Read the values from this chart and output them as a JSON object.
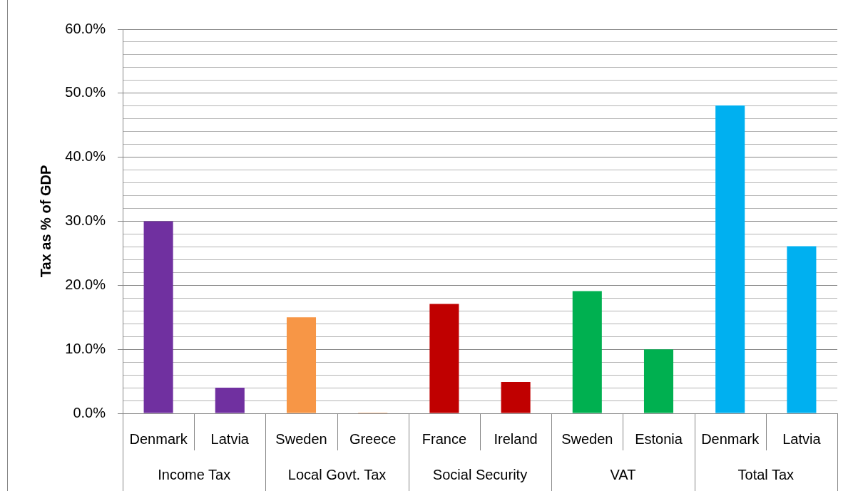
{
  "chart_data": {
    "type": "bar",
    "ylabel": "Tax as % of GDP",
    "categories": [
      "Denmark",
      "Latvia",
      "Sweden",
      "Greece",
      "France",
      "Ireland",
      "Sweden",
      "Estonia",
      "Denmark",
      "Latvia"
    ],
    "values": [
      30.0,
      4.0,
      15.0,
      0.1,
      17.1,
      4.9,
      19.1,
      10.0,
      48.1,
      26.1
    ],
    "colors": [
      "#7030a0",
      "#7030a0",
      "#f79646",
      "#f79646",
      "#c00000",
      "#c00000",
      "#00b050",
      "#00b050",
      "#00b0f0",
      "#00b0f0"
    ],
    "ylim": [
      0,
      60
    ],
    "yticks": [
      {
        "value": 0,
        "label": "0.0%"
      },
      {
        "value": 2,
        "label": null
      },
      {
        "value": 4,
        "label": null
      },
      {
        "value": 6,
        "label": null
      },
      {
        "value": 8,
        "label": null
      },
      {
        "value": 10,
        "label": "10.0%"
      },
      {
        "value": 12,
        "label": null
      },
      {
        "value": 14,
        "label": null
      },
      {
        "value": 16,
        "label": null
      },
      {
        "value": 18,
        "label": null
      },
      {
        "value": 20,
        "label": "20.0%"
      },
      {
        "value": 22,
        "label": null
      },
      {
        "value": 24,
        "label": null
      },
      {
        "value": 26,
        "label": null
      },
      {
        "value": 28,
        "label": null
      },
      {
        "value": 30,
        "label": "30.0%"
      },
      {
        "value": 32,
        "label": null
      },
      {
        "value": 34,
        "label": null
      },
      {
        "value": 36,
        "label": null
      },
      {
        "value": 38,
        "label": null
      },
      {
        "value": 40,
        "label": "40.0%"
      },
      {
        "value": 42,
        "label": null
      },
      {
        "value": 44,
        "label": null
      },
      {
        "value": 46,
        "label": null
      },
      {
        "value": 48,
        "label": null
      },
      {
        "value": 50,
        "label": "50.0%"
      },
      {
        "value": 52,
        "label": null
      },
      {
        "value": 54,
        "label": null
      },
      {
        "value": 56,
        "label": null
      },
      {
        "value": 58,
        "label": null
      },
      {
        "value": 60,
        "label": "60.0%"
      }
    ],
    "grid": "y",
    "annotations": [
      "Income Tax",
      "Local Govt. Tax",
      "Social Security",
      "VAT",
      "Total Tax"
    ]
  }
}
